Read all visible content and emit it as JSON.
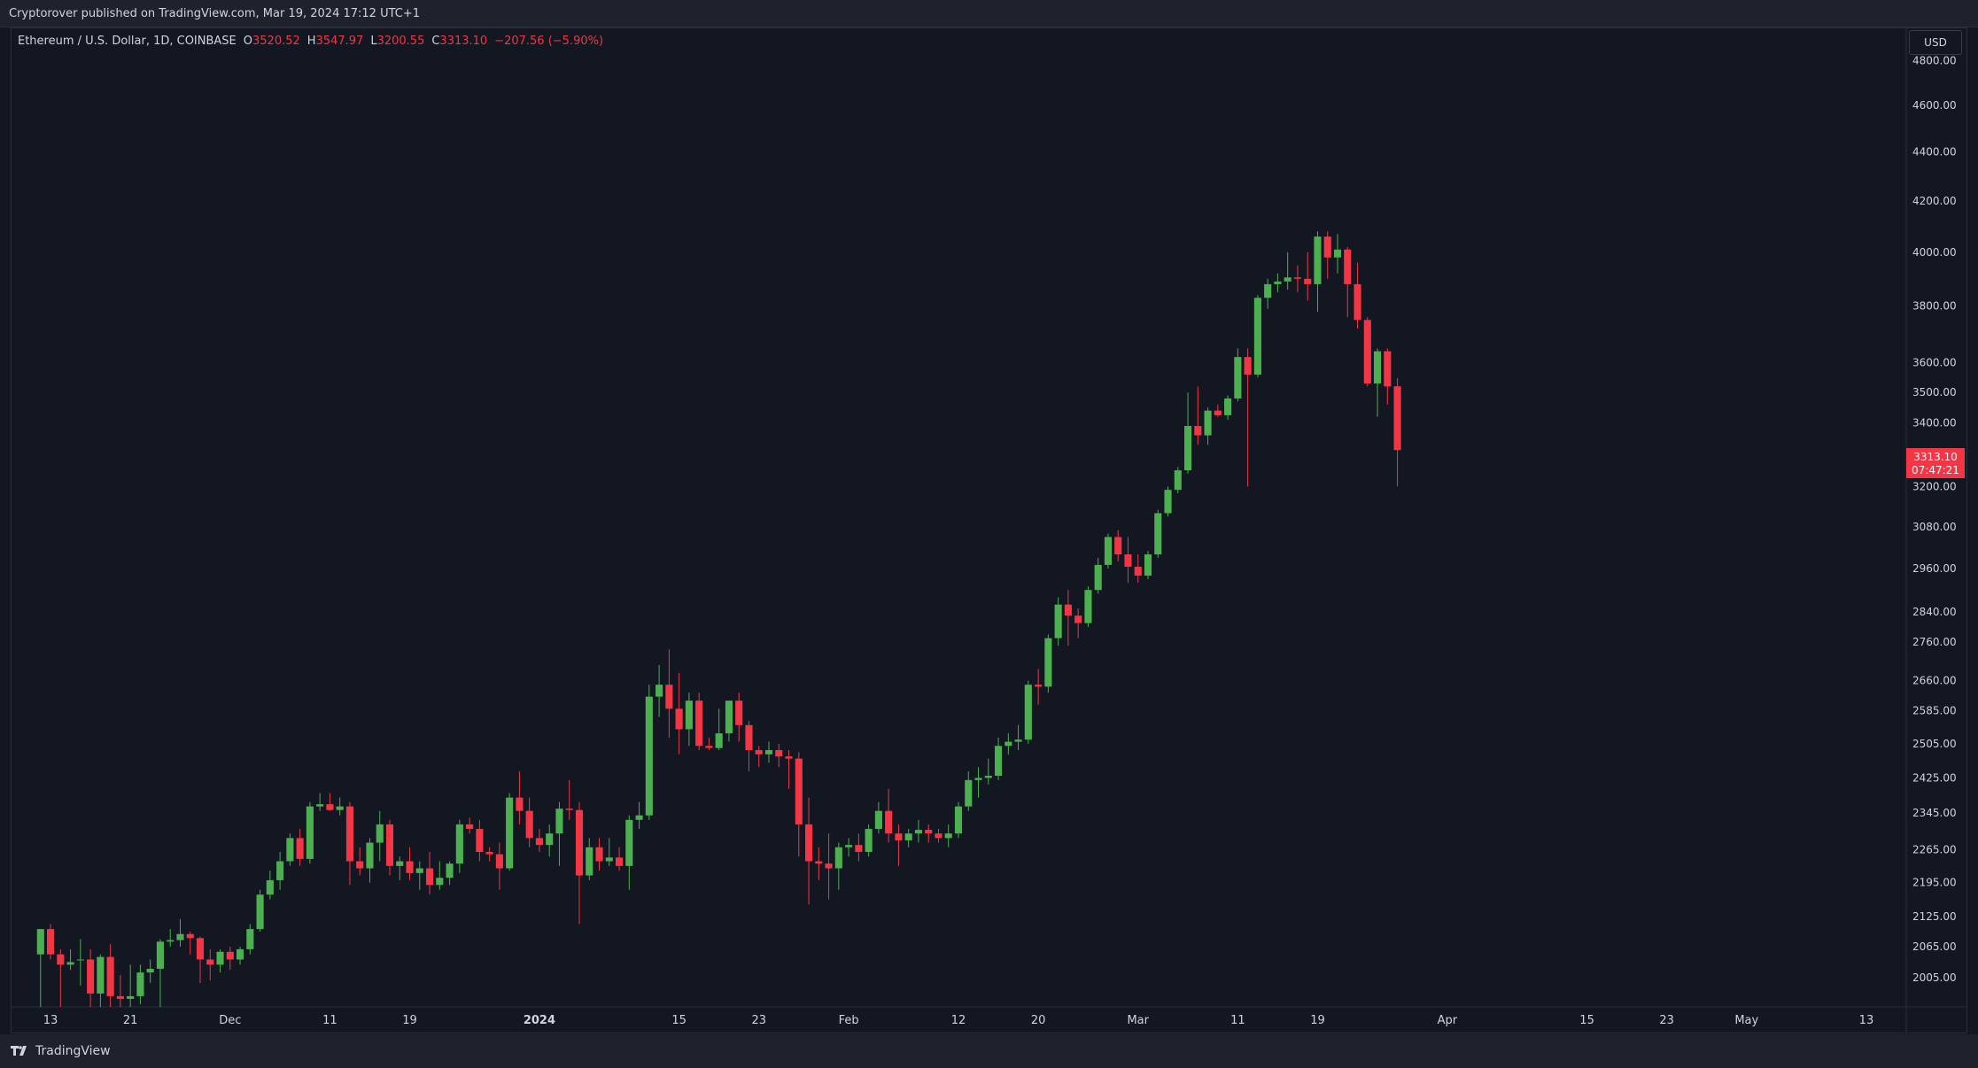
{
  "header": {
    "published": "Cryptorover published on TradingView.com, Mar 19, 2024 17:12 UTC+1"
  },
  "legend": {
    "symbol": "Ethereum / U.S. Dollar, 1D, COINBASE",
    "open_label": "O",
    "open": "3520.52",
    "high_label": "H",
    "high": "3547.97",
    "low_label": "L",
    "low": "3200.55",
    "close_label": "C",
    "close": "3313.10",
    "change": "−207.56 (−5.90%)"
  },
  "currency_button": "USD",
  "last_price": {
    "price": "3313.10",
    "countdown": "07:47:21"
  },
  "footer": {
    "brand": "TradingView"
  },
  "colors": {
    "background": "#131722",
    "up": "#4caf50",
    "down": "#f23645",
    "up_body": "#2e7d32",
    "axis_text": "#d1d4dc",
    "grid_border": "#2a2e39"
  },
  "chart_data": {
    "type": "candlestick",
    "title": "Ethereum / U.S. Dollar, 1D, COINBASE",
    "y_scale": "log",
    "ylim": [
      1950,
      4950
    ],
    "grid": false,
    "y_ticks": [
      "4800.00",
      "4600.00",
      "4400.00",
      "4200.00",
      "4000.00",
      "3800.00",
      "3600.00",
      "3500.00",
      "3400.00",
      "3200.00",
      "3080.00",
      "2960.00",
      "2840.00",
      "2760.00",
      "2660.00",
      "2585.00",
      "2505.00",
      "2425.00",
      "2345.00",
      "2265.00",
      "2195.00",
      "2125.00",
      "2065.00",
      "2005.00"
    ],
    "x_ticks": [
      {
        "date": "2023-11-13",
        "label": "13"
      },
      {
        "date": "2023-11-21",
        "label": "21"
      },
      {
        "date": "2023-12-01",
        "label": "Dec"
      },
      {
        "date": "2023-12-11",
        "label": "11"
      },
      {
        "date": "2023-12-19",
        "label": "19"
      },
      {
        "date": "2024-01-01",
        "label": "2024"
      },
      {
        "date": "2024-01-15",
        "label": "15"
      },
      {
        "date": "2024-01-23",
        "label": "23"
      },
      {
        "date": "2024-02-01",
        "label": "Feb"
      },
      {
        "date": "2024-02-12",
        "label": "12"
      },
      {
        "date": "2024-02-20",
        "label": "20"
      },
      {
        "date": "2024-03-01",
        "label": "Mar"
      },
      {
        "date": "2024-03-11",
        "label": "11"
      },
      {
        "date": "2024-03-19",
        "label": "19"
      },
      {
        "date": "2024-04-01",
        "label": "Apr"
      },
      {
        "date": "2024-04-15",
        "label": "15"
      },
      {
        "date": "2024-04-23",
        "label": "23"
      },
      {
        "date": "2024-05-01",
        "label": "May"
      },
      {
        "date": "2024-05-13",
        "label": "13"
      }
    ],
    "x_range": [
      "2023-11-09",
      "2024-05-17"
    ],
    "candles": [
      {
        "d": "2023-11-12",
        "o": 2050,
        "h": 2100,
        "l": 1950,
        "c": 2100
      },
      {
        "d": "2023-11-13",
        "o": 2100,
        "h": 2110,
        "l": 2040,
        "c": 2050
      },
      {
        "d": "2023-11-14",
        "o": 2050,
        "h": 2060,
        "l": 1950,
        "c": 2030
      },
      {
        "d": "2023-11-15",
        "o": 2030,
        "h": 2060,
        "l": 2020,
        "c": 2035
      },
      {
        "d": "2023-11-16",
        "o": 2040,
        "h": 2080,
        "l": 1990,
        "c": 2040
      },
      {
        "d": "2023-11-17",
        "o": 2040,
        "h": 2060,
        "l": 1950,
        "c": 1975
      },
      {
        "d": "2023-11-18",
        "o": 1975,
        "h": 2050,
        "l": 1950,
        "c": 2045
      },
      {
        "d": "2023-11-19",
        "o": 2045,
        "h": 2070,
        "l": 1950,
        "c": 1970
      },
      {
        "d": "2023-11-20",
        "o": 1970,
        "h": 2010,
        "l": 1950,
        "c": 1965
      },
      {
        "d": "2023-11-21",
        "o": 1965,
        "h": 2030,
        "l": 1950,
        "c": 1970
      },
      {
        "d": "2023-11-22",
        "o": 1970,
        "h": 2030,
        "l": 1955,
        "c": 2015
      },
      {
        "d": "2023-11-23",
        "o": 2015,
        "h": 2040,
        "l": 1995,
        "c": 2022
      },
      {
        "d": "2023-11-24",
        "o": 2022,
        "h": 2080,
        "l": 1950,
        "c": 2075
      },
      {
        "d": "2023-11-25",
        "o": 2075,
        "h": 2100,
        "l": 2065,
        "c": 2078
      },
      {
        "d": "2023-11-26",
        "o": 2078,
        "h": 2120,
        "l": 2065,
        "c": 2090
      },
      {
        "d": "2023-11-27",
        "o": 2090,
        "h": 2095,
        "l": 2050,
        "c": 2082
      },
      {
        "d": "2023-11-28",
        "o": 2082,
        "h": 2085,
        "l": 1995,
        "c": 2040
      },
      {
        "d": "2023-11-29",
        "o": 2040,
        "h": 2060,
        "l": 2000,
        "c": 2030
      },
      {
        "d": "2023-11-30",
        "o": 2030,
        "h": 2060,
        "l": 2015,
        "c": 2055
      },
      {
        "d": "2023-12-01",
        "o": 2055,
        "h": 2065,
        "l": 2020,
        "c": 2040
      },
      {
        "d": "2023-12-02",
        "o": 2040,
        "h": 2065,
        "l": 2030,
        "c": 2060
      },
      {
        "d": "2023-12-03",
        "o": 2060,
        "h": 2110,
        "l": 2050,
        "c": 2100
      },
      {
        "d": "2023-12-04",
        "o": 2100,
        "h": 2180,
        "l": 2095,
        "c": 2170
      },
      {
        "d": "2023-12-05",
        "o": 2170,
        "h": 2220,
        "l": 2160,
        "c": 2200
      },
      {
        "d": "2023-12-06",
        "o": 2200,
        "h": 2260,
        "l": 2180,
        "c": 2240
      },
      {
        "d": "2023-12-07",
        "o": 2240,
        "h": 2300,
        "l": 2230,
        "c": 2290
      },
      {
        "d": "2023-12-08",
        "o": 2290,
        "h": 2310,
        "l": 2230,
        "c": 2245
      },
      {
        "d": "2023-12-09",
        "o": 2245,
        "h": 2370,
        "l": 2235,
        "c": 2360
      },
      {
        "d": "2023-12-10",
        "o": 2360,
        "h": 2390,
        "l": 2350,
        "c": 2365
      },
      {
        "d": "2023-12-11",
        "o": 2365,
        "h": 2390,
        "l": 2350,
        "c": 2352
      },
      {
        "d": "2023-12-12",
        "o": 2352,
        "h": 2380,
        "l": 2340,
        "c": 2360
      },
      {
        "d": "2023-12-13",
        "o": 2360,
        "h": 2370,
        "l": 2190,
        "c": 2240
      },
      {
        "d": "2023-12-14",
        "o": 2240,
        "h": 2270,
        "l": 2210,
        "c": 2225
      },
      {
        "d": "2023-12-15",
        "o": 2225,
        "h": 2290,
        "l": 2195,
        "c": 2280
      },
      {
        "d": "2023-12-16",
        "o": 2280,
        "h": 2350,
        "l": 2240,
        "c": 2320
      },
      {
        "d": "2023-12-17",
        "o": 2320,
        "h": 2330,
        "l": 2210,
        "c": 2230
      },
      {
        "d": "2023-12-18",
        "o": 2230,
        "h": 2250,
        "l": 2200,
        "c": 2240
      },
      {
        "d": "2023-12-19",
        "o": 2240,
        "h": 2270,
        "l": 2200,
        "c": 2215
      },
      {
        "d": "2023-12-20",
        "o": 2215,
        "h": 2240,
        "l": 2180,
        "c": 2225
      },
      {
        "d": "2023-12-21",
        "o": 2225,
        "h": 2260,
        "l": 2170,
        "c": 2190
      },
      {
        "d": "2023-12-22",
        "o": 2190,
        "h": 2240,
        "l": 2180,
        "c": 2205
      },
      {
        "d": "2023-12-23",
        "o": 2205,
        "h": 2240,
        "l": 2190,
        "c": 2235
      },
      {
        "d": "2023-12-24",
        "o": 2235,
        "h": 2330,
        "l": 2215,
        "c": 2320
      },
      {
        "d": "2023-12-25",
        "o": 2320,
        "h": 2335,
        "l": 2300,
        "c": 2310
      },
      {
        "d": "2023-12-26",
        "o": 2310,
        "h": 2330,
        "l": 2240,
        "c": 2260
      },
      {
        "d": "2023-12-27",
        "o": 2260,
        "h": 2270,
        "l": 2240,
        "c": 2255
      },
      {
        "d": "2023-12-28",
        "o": 2255,
        "h": 2280,
        "l": 2180,
        "c": 2225
      },
      {
        "d": "2023-12-29",
        "o": 2225,
        "h": 2390,
        "l": 2220,
        "c": 2380
      },
      {
        "d": "2023-12-30",
        "o": 2380,
        "h": 2440,
        "l": 2320,
        "c": 2350
      },
      {
        "d": "2023-12-31",
        "o": 2350,
        "h": 2380,
        "l": 2270,
        "c": 2290
      },
      {
        "d": "2024-01-01",
        "o": 2290,
        "h": 2310,
        "l": 2260,
        "c": 2275
      },
      {
        "d": "2024-01-02",
        "o": 2275,
        "h": 2320,
        "l": 2250,
        "c": 2300
      },
      {
        "d": "2024-01-03",
        "o": 2300,
        "h": 2370,
        "l": 2230,
        "c": 2355
      },
      {
        "d": "2024-01-04",
        "o": 2355,
        "h": 2420,
        "l": 2330,
        "c": 2352
      },
      {
        "d": "2024-01-05",
        "o": 2352,
        "h": 2370,
        "l": 2110,
        "c": 2210
      },
      {
        "d": "2024-01-06",
        "o": 2210,
        "h": 2290,
        "l": 2200,
        "c": 2270
      },
      {
        "d": "2024-01-07",
        "o": 2270,
        "h": 2290,
        "l": 2220,
        "c": 2240
      },
      {
        "d": "2024-01-08",
        "o": 2240,
        "h": 2290,
        "l": 2230,
        "c": 2248
      },
      {
        "d": "2024-01-09",
        "o": 2248,
        "h": 2270,
        "l": 2220,
        "c": 2230
      },
      {
        "d": "2024-01-10",
        "o": 2230,
        "h": 2340,
        "l": 2180,
        "c": 2330
      },
      {
        "d": "2024-01-11",
        "o": 2330,
        "h": 2370,
        "l": 2310,
        "c": 2340
      },
      {
        "d": "2024-01-12",
        "o": 2340,
        "h": 2650,
        "l": 2330,
        "c": 2620
      },
      {
        "d": "2024-01-13",
        "o": 2620,
        "h": 2700,
        "l": 2570,
        "c": 2650
      },
      {
        "d": "2024-01-14",
        "o": 2650,
        "h": 2740,
        "l": 2520,
        "c": 2590
      },
      {
        "d": "2024-01-15",
        "o": 2590,
        "h": 2680,
        "l": 2480,
        "c": 2540
      },
      {
        "d": "2024-01-16",
        "o": 2540,
        "h": 2630,
        "l": 2500,
        "c": 2610
      },
      {
        "d": "2024-01-17",
        "o": 2610,
        "h": 2630,
        "l": 2490,
        "c": 2500
      },
      {
        "d": "2024-01-18",
        "o": 2500,
        "h": 2520,
        "l": 2490,
        "c": 2495
      },
      {
        "d": "2024-01-19",
        "o": 2495,
        "h": 2590,
        "l": 2490,
        "c": 2530
      },
      {
        "d": "2024-01-20",
        "o": 2530,
        "h": 2610,
        "l": 2510,
        "c": 2610
      },
      {
        "d": "2024-01-21",
        "o": 2610,
        "h": 2630,
        "l": 2510,
        "c": 2550
      },
      {
        "d": "2024-01-22",
        "o": 2550,
        "h": 2560,
        "l": 2440,
        "c": 2490
      },
      {
        "d": "2024-01-23",
        "o": 2490,
        "h": 2500,
        "l": 2450,
        "c": 2480
      },
      {
        "d": "2024-01-24",
        "o": 2480,
        "h": 2510,
        "l": 2460,
        "c": 2490
      },
      {
        "d": "2024-01-25",
        "o": 2490,
        "h": 2505,
        "l": 2450,
        "c": 2475
      },
      {
        "d": "2024-01-26",
        "o": 2475,
        "h": 2490,
        "l": 2400,
        "c": 2470
      },
      {
        "d": "2024-01-27",
        "o": 2470,
        "h": 2485,
        "l": 2250,
        "c": 2320
      },
      {
        "d": "2024-01-28",
        "o": 2320,
        "h": 2380,
        "l": 2150,
        "c": 2240
      },
      {
        "d": "2024-01-29",
        "o": 2240,
        "h": 2270,
        "l": 2200,
        "c": 2235
      },
      {
        "d": "2024-01-30",
        "o": 2235,
        "h": 2300,
        "l": 2160,
        "c": 2225
      },
      {
        "d": "2024-01-31",
        "o": 2225,
        "h": 2280,
        "l": 2180,
        "c": 2270
      },
      {
        "d": "2024-02-01",
        "o": 2270,
        "h": 2290,
        "l": 2250,
        "c": 2275
      },
      {
        "d": "2024-02-02",
        "o": 2275,
        "h": 2300,
        "l": 2240,
        "c": 2260
      },
      {
        "d": "2024-02-03",
        "o": 2260,
        "h": 2320,
        "l": 2250,
        "c": 2310
      },
      {
        "d": "2024-02-04",
        "o": 2310,
        "h": 2370,
        "l": 2300,
        "c": 2350
      },
      {
        "d": "2024-02-05",
        "o": 2350,
        "h": 2400,
        "l": 2280,
        "c": 2300
      },
      {
        "d": "2024-02-06",
        "o": 2300,
        "h": 2320,
        "l": 2230,
        "c": 2285
      },
      {
        "d": "2024-02-07",
        "o": 2285,
        "h": 2310,
        "l": 2270,
        "c": 2300
      },
      {
        "d": "2024-02-08",
        "o": 2300,
        "h": 2330,
        "l": 2280,
        "c": 2308
      },
      {
        "d": "2024-02-09",
        "o": 2308,
        "h": 2320,
        "l": 2280,
        "c": 2300
      },
      {
        "d": "2024-02-10",
        "o": 2300,
        "h": 2310,
        "l": 2280,
        "c": 2290
      },
      {
        "d": "2024-02-11",
        "o": 2290,
        "h": 2320,
        "l": 2270,
        "c": 2300
      },
      {
        "d": "2024-02-12",
        "o": 2300,
        "h": 2370,
        "l": 2290,
        "c": 2360
      },
      {
        "d": "2024-02-13",
        "o": 2360,
        "h": 2440,
        "l": 2350,
        "c": 2420
      },
      {
        "d": "2024-02-14",
        "o": 2420,
        "h": 2450,
        "l": 2380,
        "c": 2425
      },
      {
        "d": "2024-02-15",
        "o": 2425,
        "h": 2470,
        "l": 2410,
        "c": 2430
      },
      {
        "d": "2024-02-16",
        "o": 2430,
        "h": 2520,
        "l": 2420,
        "c": 2500
      },
      {
        "d": "2024-02-17",
        "o": 2500,
        "h": 2530,
        "l": 2480,
        "c": 2510
      },
      {
        "d": "2024-02-18",
        "o": 2510,
        "h": 2550,
        "l": 2490,
        "c": 2515
      },
      {
        "d": "2024-02-19",
        "o": 2515,
        "h": 2660,
        "l": 2505,
        "c": 2650
      },
      {
        "d": "2024-02-20",
        "o": 2650,
        "h": 2690,
        "l": 2600,
        "c": 2645
      },
      {
        "d": "2024-02-21",
        "o": 2645,
        "h": 2780,
        "l": 2630,
        "c": 2770
      },
      {
        "d": "2024-02-22",
        "o": 2770,
        "h": 2880,
        "l": 2750,
        "c": 2860
      },
      {
        "d": "2024-02-23",
        "o": 2860,
        "h": 2900,
        "l": 2750,
        "c": 2830
      },
      {
        "d": "2024-02-24",
        "o": 2830,
        "h": 2850,
        "l": 2770,
        "c": 2810
      },
      {
        "d": "2024-02-25",
        "o": 2810,
        "h": 2910,
        "l": 2800,
        "c": 2900
      },
      {
        "d": "2024-02-26",
        "o": 2900,
        "h": 2990,
        "l": 2890,
        "c": 2970
      },
      {
        "d": "2024-02-27",
        "o": 2970,
        "h": 3060,
        "l": 2960,
        "c": 3050
      },
      {
        "d": "2024-02-28",
        "o": 3050,
        "h": 3070,
        "l": 2980,
        "c": 3000
      },
      {
        "d": "2024-02-29",
        "o": 3000,
        "h": 3050,
        "l": 2920,
        "c": 2965
      },
      {
        "d": "2024-03-01",
        "o": 2965,
        "h": 3000,
        "l": 2920,
        "c": 2940
      },
      {
        "d": "2024-03-02",
        "o": 2940,
        "h": 3010,
        "l": 2930,
        "c": 3000
      },
      {
        "d": "2024-03-03",
        "o": 3000,
        "h": 3130,
        "l": 2990,
        "c": 3120
      },
      {
        "d": "2024-03-04",
        "o": 3120,
        "h": 3200,
        "l": 3110,
        "c": 3190
      },
      {
        "d": "2024-03-05",
        "o": 3190,
        "h": 3260,
        "l": 3180,
        "c": 3250
      },
      {
        "d": "2024-03-06",
        "o": 3250,
        "h": 3500,
        "l": 3240,
        "c": 3390
      },
      {
        "d": "2024-03-07",
        "o": 3390,
        "h": 3520,
        "l": 3330,
        "c": 3360
      },
      {
        "d": "2024-03-08",
        "o": 3360,
        "h": 3450,
        "l": 3330,
        "c": 3440
      },
      {
        "d": "2024-03-09",
        "o": 3440,
        "h": 3460,
        "l": 3420,
        "c": 3425
      },
      {
        "d": "2024-03-10",
        "o": 3425,
        "h": 3490,
        "l": 3410,
        "c": 3480
      },
      {
        "d": "2024-03-11",
        "o": 3480,
        "h": 3650,
        "l": 3470,
        "c": 3620
      },
      {
        "d": "2024-03-12",
        "o": 3620,
        "h": 3650,
        "l": 3200,
        "c": 3560
      },
      {
        "d": "2024-03-13",
        "o": 3560,
        "h": 3840,
        "l": 3550,
        "c": 3830
      },
      {
        "d": "2024-03-14",
        "o": 3830,
        "h": 3900,
        "l": 3790,
        "c": 3880
      },
      {
        "d": "2024-03-15",
        "o": 3880,
        "h": 3920,
        "l": 3850,
        "c": 3890
      },
      {
        "d": "2024-03-16",
        "o": 3890,
        "h": 4000,
        "l": 3860,
        "c": 3905
      },
      {
        "d": "2024-03-17",
        "o": 3905,
        "h": 3950,
        "l": 3850,
        "c": 3900
      },
      {
        "d": "2024-03-18",
        "o": 3900,
        "h": 4000,
        "l": 3820,
        "c": 3880
      },
      {
        "d": "2024-03-19",
        "o": 3880,
        "h": 4080,
        "l": 3780,
        "c": 4060
      },
      {
        "d": "2024-03-20",
        "o": 4060,
        "h": 4080,
        "l": 3900,
        "c": 3980
      },
      {
        "d": "2024-03-21",
        "o": 3980,
        "h": 4070,
        "l": 3920,
        "c": 4010
      },
      {
        "d": "2024-03-22",
        "o": 4010,
        "h": 4020,
        "l": 3760,
        "c": 3880
      },
      {
        "d": "2024-03-23",
        "o": 3880,
        "h": 3960,
        "l": 3720,
        "c": 3750
      },
      {
        "d": "2024-03-24",
        "o": 3750,
        "h": 3760,
        "l": 3520,
        "c": 3530
      },
      {
        "d": "2024-03-25",
        "o": 3530,
        "h": 3650,
        "l": 3420,
        "c": 3640
      },
      {
        "d": "2024-03-26",
        "o": 3640,
        "h": 3650,
        "l": 3460,
        "c": 3520
      },
      {
        "d": "2024-03-27",
        "o": 3520.52,
        "h": 3547.97,
        "l": 3200.55,
        "c": 3313.1
      }
    ]
  }
}
